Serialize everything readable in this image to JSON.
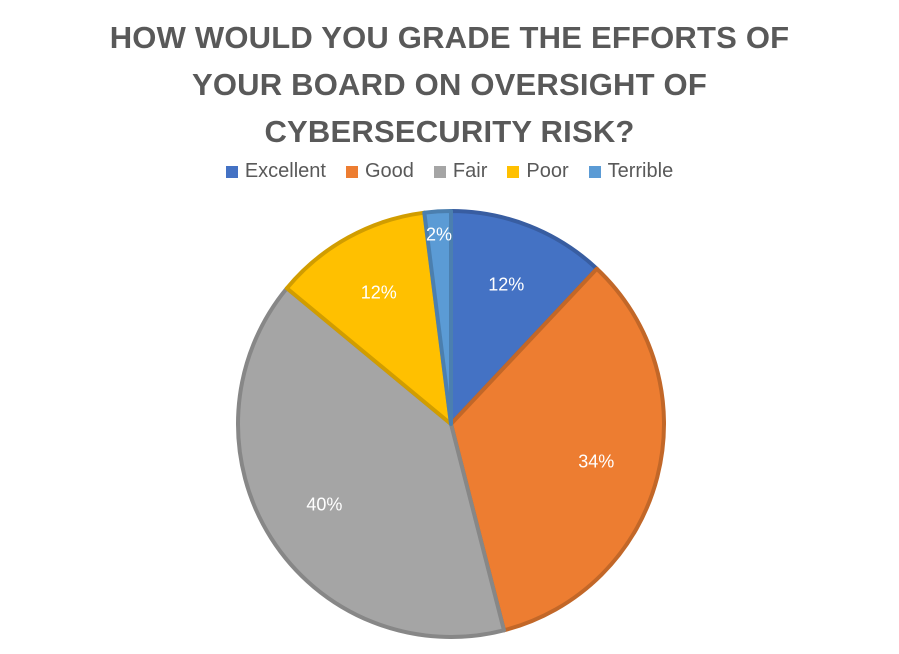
{
  "chart_data": {
    "type": "pie",
    "title_lines": [
      "HOW WOULD YOU GRADE THE EFFORTS OF",
      "YOUR BOARD ON OVERSIGHT OF",
      "CYBERSECURITY RISK?"
    ],
    "categories": [
      "Excellent",
      "Good",
      "Fair",
      "Poor",
      "Terrible"
    ],
    "values": [
      12,
      34,
      40,
      12,
      2
    ],
    "labels": [
      "12%",
      "34%",
      "40%",
      "12%",
      "2%"
    ],
    "colors": [
      "#4472C4",
      "#ED7D31",
      "#A5A5A5",
      "#FFC000",
      "#5B9BD5"
    ],
    "start": "12 o'clock",
    "direction": "clockwise",
    "legend_position": "top"
  }
}
